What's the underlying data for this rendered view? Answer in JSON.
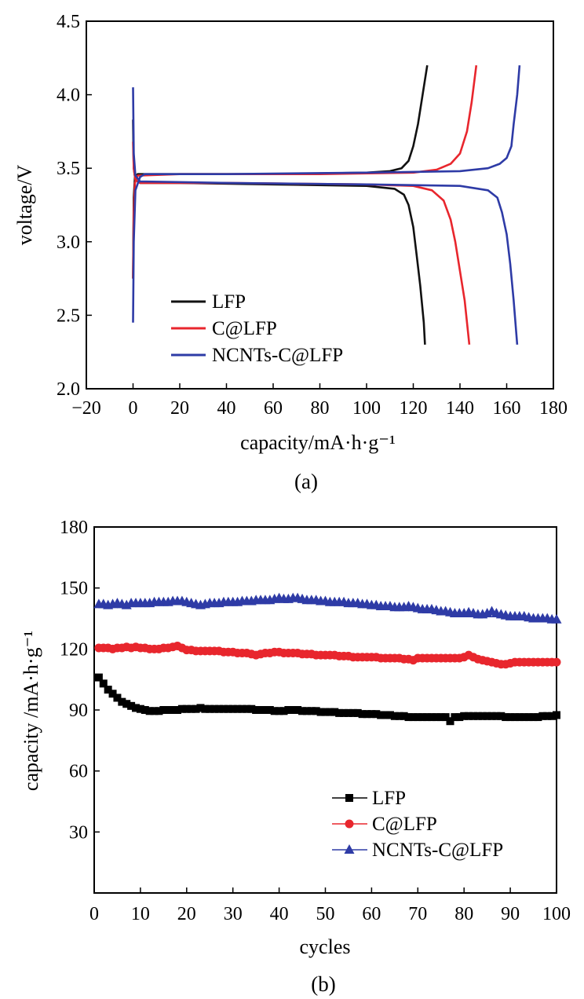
{
  "chart_data": [
    {
      "id": "a",
      "type": "line",
      "caption": "(a)",
      "xlabel": "capacity/mA·h·g⁻¹",
      "ylabel": "voltage/V",
      "xlim": [
        -20,
        180
      ],
      "ylim": [
        2.0,
        4.5
      ],
      "xticks": [
        -20,
        0,
        20,
        40,
        60,
        80,
        100,
        120,
        140,
        160,
        180
      ],
      "yticks": [
        2.0,
        2.5,
        3.0,
        3.5,
        4.0,
        4.5
      ],
      "xtick_labels": [
        "−20",
        "0",
        "20",
        "40",
        "60",
        "80",
        "100",
        "120",
        "140",
        "160",
        "180"
      ],
      "ytick_labels": [
        "2.0",
        "2.5",
        "3.0",
        "3.5",
        "4.0",
        "4.5"
      ],
      "legend_position": "bottom-left",
      "series": [
        {
          "name": "LFP",
          "color": "#111111",
          "charge": [
            [
              0,
              2.75
            ],
            [
              0.3,
              3.3
            ],
            [
              0.8,
              3.44
            ],
            [
              2,
              3.46
            ],
            [
              20,
              3.46
            ],
            [
              60,
              3.46
            ],
            [
              100,
              3.47
            ],
            [
              110,
              3.48
            ],
            [
              115,
              3.5
            ],
            [
              118,
              3.55
            ],
            [
              120,
              3.65
            ],
            [
              122,
              3.8
            ],
            [
              124,
              4.0
            ],
            [
              126,
              4.2
            ]
          ],
          "discharge": [
            [
              0,
              3.83
            ],
            [
              0.3,
              3.5
            ],
            [
              1,
              3.42
            ],
            [
              3,
              3.4
            ],
            [
              20,
              3.4
            ],
            [
              60,
              3.39
            ],
            [
              100,
              3.38
            ],
            [
              112,
              3.36
            ],
            [
              116,
              3.32
            ],
            [
              118,
              3.25
            ],
            [
              120,
              3.1
            ],
            [
              121.5,
              2.9
            ],
            [
              123,
              2.7
            ],
            [
              124.5,
              2.45
            ],
            [
              125,
              2.3
            ]
          ]
        },
        {
          "name": "C@LFP",
          "color": "#e8262d",
          "charge": [
            [
              0,
              2.75
            ],
            [
              0.3,
              3.2
            ],
            [
              0.8,
              3.4
            ],
            [
              2,
              3.45
            ],
            [
              20,
              3.46
            ],
            [
              80,
              3.46
            ],
            [
              120,
              3.47
            ],
            [
              130,
              3.49
            ],
            [
              136,
              3.53
            ],
            [
              140,
              3.6
            ],
            [
              143,
              3.75
            ],
            [
              145,
              3.95
            ],
            [
              147,
              4.2
            ]
          ],
          "discharge": [
            [
              0,
              3.68
            ],
            [
              0.3,
              3.5
            ],
            [
              1,
              3.42
            ],
            [
              3,
              3.4
            ],
            [
              40,
              3.4
            ],
            [
              100,
              3.39
            ],
            [
              120,
              3.38
            ],
            [
              128,
              3.35
            ],
            [
              133,
              3.28
            ],
            [
              136,
              3.15
            ],
            [
              138,
              3.0
            ],
            [
              140,
              2.8
            ],
            [
              142,
              2.6
            ],
            [
              144,
              2.3
            ]
          ]
        },
        {
          "name": "NCNTs-C@LFP",
          "color": "#2e3ba6",
          "charge": [
            [
              0,
              2.45
            ],
            [
              0.3,
              3.0
            ],
            [
              1,
              3.35
            ],
            [
              3,
              3.44
            ],
            [
              5,
              3.46
            ],
            [
              40,
              3.46
            ],
            [
              100,
              3.47
            ],
            [
              140,
              3.48
            ],
            [
              152,
              3.5
            ],
            [
              157,
              3.53
            ],
            [
              160,
              3.57
            ],
            [
              162,
              3.65
            ],
            [
              163,
              3.8
            ],
            [
              164.5,
              4.0
            ],
            [
              165.5,
              4.2
            ]
          ],
          "discharge": [
            [
              0,
              4.05
            ],
            [
              0.3,
              3.6
            ],
            [
              1,
              3.45
            ],
            [
              3,
              3.41
            ],
            [
              40,
              3.4
            ],
            [
              100,
              3.39
            ],
            [
              140,
              3.38
            ],
            [
              152,
              3.35
            ],
            [
              156,
              3.3
            ],
            [
              158,
              3.2
            ],
            [
              160,
              3.05
            ],
            [
              161.5,
              2.85
            ],
            [
              163,
              2.6
            ],
            [
              164.5,
              2.3
            ]
          ]
        }
      ]
    },
    {
      "id": "b",
      "type": "scatter",
      "caption": "(b)",
      "xlabel": "cycles",
      "ylabel": "capacity /mA·h·g⁻¹",
      "xlim": [
        0,
        100
      ],
      "ylim": [
        0,
        180
      ],
      "xticks": [
        0,
        10,
        20,
        30,
        40,
        50,
        60,
        70,
        80,
        90,
        100
      ],
      "yticks": [
        30,
        60,
        90,
        120,
        150,
        180
      ],
      "xtick_labels": [
        "0",
        "10",
        "20",
        "30",
        "40",
        "50",
        "60",
        "70",
        "80",
        "90",
        "100"
      ],
      "ytick_labels": [
        "30",
        "60",
        "90",
        "120",
        "150",
        "180"
      ],
      "legend_position": "bottom-right",
      "series": [
        {
          "name": "LFP",
          "color": "#000000",
          "marker": "square",
          "x": [
            1,
            2,
            3,
            4,
            5,
            6,
            7,
            8,
            9,
            10,
            11,
            12,
            13,
            14,
            15,
            16,
            17,
            18,
            19,
            20,
            21,
            22,
            23,
            24,
            25,
            26,
            27,
            28,
            29,
            30,
            31,
            32,
            33,
            34,
            35,
            36,
            37,
            38,
            39,
            40,
            41,
            42,
            43,
            44,
            45,
            46,
            47,
            48,
            49,
            50,
            51,
            52,
            53,
            54,
            55,
            56,
            57,
            58,
            59,
            60,
            61,
            62,
            63,
            64,
            65,
            66,
            67,
            68,
            69,
            70,
            71,
            72,
            73,
            74,
            75,
            76,
            77,
            78,
            79,
            80,
            81,
            82,
            83,
            84,
            85,
            86,
            87,
            88,
            89,
            90,
            91,
            92,
            93,
            94,
            95,
            96,
            97,
            98,
            99,
            100
          ],
          "values": [
            106,
            103,
            100,
            98,
            96,
            94,
            93,
            92,
            91,
            90.5,
            90,
            89.5,
            89.5,
            89.5,
            90,
            90,
            90,
            90,
            90.5,
            90.5,
            90.5,
            90.5,
            91,
            90.5,
            90.5,
            90.5,
            90.5,
            90.5,
            90.5,
            90.5,
            90.5,
            90.5,
            90.5,
            90.5,
            90,
            90,
            90,
            90,
            89.5,
            89.5,
            89.5,
            90,
            90,
            90,
            89.5,
            89.5,
            89.5,
            89.5,
            89,
            89,
            89,
            89,
            88.5,
            88.5,
            88.5,
            88.5,
            88.5,
            88,
            88,
            88,
            88,
            87.5,
            87.5,
            87.5,
            87,
            87,
            87,
            86.5,
            86.5,
            86.5,
            86.5,
            86.5,
            86.5,
            86.5,
            86.5,
            86.5,
            84.5,
            86.5,
            86.5,
            87,
            87,
            87,
            87,
            87,
            87,
            87,
            87,
            87,
            86.5,
            86.5,
            86.5,
            86.5,
            86.5,
            86.5,
            86.5,
            86.5,
            87,
            87,
            87,
            87.5
          ]
        },
        {
          "name": "C@LFP",
          "color": "#e8262d",
          "marker": "circle",
          "x": [
            1,
            2,
            3,
            4,
            5,
            6,
            7,
            8,
            9,
            10,
            11,
            12,
            13,
            14,
            15,
            16,
            17,
            18,
            19,
            20,
            21,
            22,
            23,
            24,
            25,
            26,
            27,
            28,
            29,
            30,
            31,
            32,
            33,
            34,
            35,
            36,
            37,
            38,
            39,
            40,
            41,
            42,
            43,
            44,
            45,
            46,
            47,
            48,
            49,
            50,
            51,
            52,
            53,
            54,
            55,
            56,
            57,
            58,
            59,
            60,
            61,
            62,
            63,
            64,
            65,
            66,
            67,
            68,
            69,
            70,
            71,
            72,
            73,
            74,
            75,
            76,
            77,
            78,
            79,
            80,
            81,
            82,
            83,
            84,
            85,
            86,
            87,
            88,
            89,
            90,
            91,
            92,
            93,
            94,
            95,
            96,
            97,
            98,
            99,
            100
          ],
          "values": [
            120.5,
            120.5,
            120.5,
            120,
            120.5,
            120.5,
            121,
            120.5,
            121,
            120.5,
            120.5,
            120,
            120,
            120,
            120.5,
            120.5,
            121,
            121.5,
            120.5,
            119.5,
            119.5,
            119,
            119,
            119,
            119,
            119,
            119,
            118.5,
            118.5,
            118.5,
            118,
            118,
            118,
            117.5,
            117,
            117.5,
            118,
            118,
            118.5,
            118.5,
            118,
            118,
            118,
            118,
            117.5,
            117.5,
            117.5,
            117,
            117,
            117,
            117,
            117,
            116.5,
            116.5,
            116.5,
            116,
            116,
            116,
            116,
            116,
            116,
            115.5,
            115.5,
            115.5,
            115.5,
            115.5,
            115,
            115,
            114.5,
            115.5,
            115.5,
            115.5,
            115.5,
            115.5,
            115.5,
            115.5,
            115.5,
            115.5,
            115.5,
            116,
            117,
            116,
            115,
            114.5,
            114,
            113.5,
            113,
            112.5,
            112.5,
            113,
            113.5,
            113.5,
            113.5,
            113.5,
            113.5,
            113.5,
            113.5,
            113.5,
            113.5,
            113.5
          ]
        },
        {
          "name": "NCNTs-C@LFP",
          "color": "#2e3ba6",
          "marker": "triangle",
          "x": [
            1,
            2,
            3,
            4,
            5,
            6,
            7,
            8,
            9,
            10,
            11,
            12,
            13,
            14,
            15,
            16,
            17,
            18,
            19,
            20,
            21,
            22,
            23,
            24,
            25,
            26,
            27,
            28,
            29,
            30,
            31,
            32,
            33,
            34,
            35,
            36,
            37,
            38,
            39,
            40,
            41,
            42,
            43,
            44,
            45,
            46,
            47,
            48,
            49,
            50,
            51,
            52,
            53,
            54,
            55,
            56,
            57,
            58,
            59,
            60,
            61,
            62,
            63,
            64,
            65,
            66,
            67,
            68,
            69,
            70,
            71,
            72,
            73,
            74,
            75,
            76,
            77,
            78,
            79,
            80,
            81,
            82,
            83,
            84,
            85,
            86,
            87,
            88,
            89,
            90,
            91,
            92,
            93,
            94,
            95,
            96,
            97,
            98,
            99,
            100
          ],
          "values": [
            142,
            142,
            141.5,
            142,
            142.5,
            142,
            141.5,
            142.5,
            142.5,
            142.5,
            142.5,
            142.5,
            143,
            143,
            143,
            143,
            143.5,
            143.5,
            143.5,
            143,
            142.5,
            142,
            141.5,
            142,
            142.5,
            142.5,
            142.5,
            143,
            143,
            143,
            143,
            143.5,
            143.5,
            143.5,
            144,
            144,
            144,
            144,
            144.5,
            145,
            144.5,
            144.5,
            145,
            145,
            144.5,
            144,
            144,
            144,
            143.5,
            143.5,
            143,
            143,
            143,
            143,
            142.5,
            142.5,
            142.5,
            142,
            142,
            141.5,
            141.5,
            141,
            141,
            141,
            140.5,
            140.5,
            140.5,
            141,
            140.5,
            140,
            139.5,
            139.5,
            139.5,
            139,
            138.5,
            138.5,
            138,
            137.5,
            137.5,
            137.5,
            138,
            137.5,
            137,
            137,
            137.5,
            138.5,
            137.5,
            137,
            136.5,
            136,
            136,
            136,
            136,
            135.5,
            135,
            135,
            135,
            135,
            134.5,
            134.5
          ]
        }
      ]
    }
  ]
}
